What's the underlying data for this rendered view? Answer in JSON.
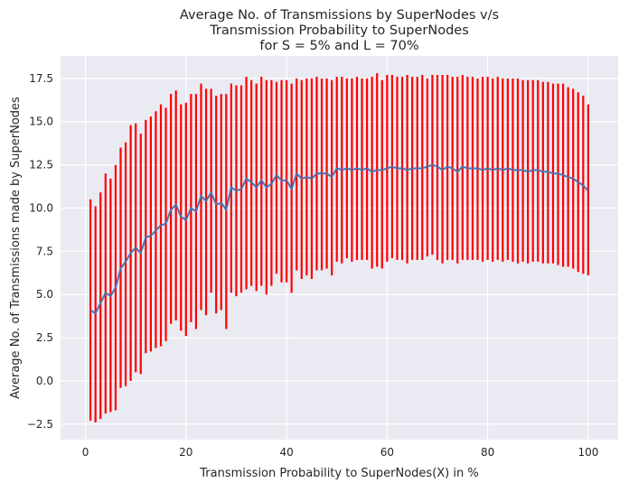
{
  "chart_data": {
    "type": "line",
    "title_lines": [
      "Average No. of Transmissions by SuperNodes v/s",
      "Transmission Probability to SuperNodes",
      "for S = 5% and L = 70%"
    ],
    "xlabel": "Transmission Probability to SuperNodes(X) in %",
    "ylabel": "Average No. of Transmissions made by SuperNodes",
    "xlim": [
      -4.95,
      105.95
    ],
    "ylim": [
      -3.4,
      18.8
    ],
    "x_ticks": [
      0,
      20,
      40,
      60,
      80,
      100
    ],
    "x_tick_labels": [
      "0",
      "20",
      "40",
      "60",
      "80",
      "100"
    ],
    "y_ticks": [
      -2.5,
      0.0,
      2.5,
      5.0,
      7.5,
      10.0,
      12.5,
      15.0,
      17.5
    ],
    "y_tick_labels": [
      "−2.5",
      "0.0",
      "2.5",
      "5.0",
      "7.5",
      "10.0",
      "12.5",
      "15.0",
      "17.5"
    ],
    "grid": true,
    "background_color": "#eaeaf2",
    "grid_color": "#ffffff",
    "line_color": "#4c72b0",
    "errorbar_color": "#ff0000",
    "x": [
      1,
      2,
      3,
      4,
      5,
      6,
      7,
      8,
      9,
      10,
      11,
      12,
      13,
      14,
      15,
      16,
      17,
      18,
      19,
      20,
      21,
      22,
      23,
      24,
      25,
      26,
      27,
      28,
      29,
      30,
      31,
      32,
      33,
      34,
      35,
      36,
      37,
      38,
      39,
      40,
      41,
      42,
      43,
      44,
      45,
      46,
      47,
      48,
      49,
      50,
      51,
      52,
      53,
      54,
      55,
      56,
      57,
      58,
      59,
      60,
      61,
      62,
      63,
      64,
      65,
      66,
      67,
      68,
      69,
      70,
      71,
      72,
      73,
      74,
      75,
      76,
      77,
      78,
      79,
      80,
      81,
      82,
      83,
      84,
      85,
      86,
      87,
      88,
      89,
      90,
      91,
      92,
      93,
      94,
      95,
      96,
      97,
      98,
      99,
      100
    ],
    "y": [
      4.1,
      3.9,
      4.5,
      5.1,
      4.9,
      5.4,
      6.5,
      6.9,
      7.4,
      7.7,
      7.4,
      8.3,
      8.4,
      8.7,
      9.0,
      9.1,
      9.9,
      10.2,
      9.5,
      9.3,
      10.0,
      9.8,
      10.7,
      10.4,
      10.9,
      10.2,
      10.3,
      9.9,
      11.2,
      11.0,
      11.1,
      11.7,
      11.5,
      11.2,
      11.6,
      11.2,
      11.4,
      11.9,
      11.6,
      11.6,
      11.1,
      12.0,
      11.7,
      11.8,
      11.7,
      12.0,
      12.0,
      12.0,
      11.8,
      12.3,
      12.2,
      12.3,
      12.2,
      12.3,
      12.2,
      12.3,
      12.1,
      12.2,
      12.2,
      12.3,
      12.4,
      12.3,
      12.3,
      12.2,
      12.3,
      12.3,
      12.3,
      12.4,
      12.5,
      12.4,
      12.2,
      12.4,
      12.3,
      12.1,
      12.4,
      12.3,
      12.3,
      12.3,
      12.2,
      12.3,
      12.2,
      12.3,
      12.2,
      12.3,
      12.2,
      12.2,
      12.2,
      12.1,
      12.2,
      12.2,
      12.1,
      12.1,
      12.0,
      12.0,
      11.9,
      11.8,
      11.7,
      11.5,
      11.3,
      11.0
    ],
    "upper": [
      10.5,
      10.1,
      10.9,
      12.0,
      11.7,
      12.5,
      13.5,
      13.8,
      14.8,
      14.9,
      14.3,
      15.1,
      15.3,
      15.6,
      16.0,
      15.8,
      16.6,
      16.8,
      16.0,
      16.1,
      16.6,
      16.6,
      17.2,
      16.9,
      16.9,
      16.5,
      16.6,
      16.6,
      17.2,
      17.1,
      17.1,
      17.6,
      17.4,
      17.2,
      17.6,
      17.4,
      17.4,
      17.3,
      17.4,
      17.4,
      17.2,
      17.5,
      17.4,
      17.5,
      17.5,
      17.6,
      17.5,
      17.5,
      17.4,
      17.6,
      17.6,
      17.5,
      17.5,
      17.6,
      17.5,
      17.5,
      17.6,
      17.8,
      17.4,
      17.7,
      17.7,
      17.6,
      17.6,
      17.7,
      17.6,
      17.6,
      17.7,
      17.5,
      17.7,
      17.7,
      17.7,
      17.7,
      17.6,
      17.6,
      17.7,
      17.6,
      17.6,
      17.5,
      17.6,
      17.6,
      17.5,
      17.6,
      17.5,
      17.5,
      17.5,
      17.5,
      17.4,
      17.4,
      17.4,
      17.4,
      17.3,
      17.3,
      17.2,
      17.2,
      17.2,
      17.0,
      16.9,
      16.7,
      16.5,
      16.0
    ],
    "lower": [
      -2.3,
      -2.4,
      -2.2,
      -1.9,
      -1.8,
      -1.7,
      -0.4,
      -0.3,
      0.0,
      0.5,
      0.4,
      1.6,
      1.7,
      1.9,
      2.0,
      2.3,
      3.3,
      3.5,
      2.9,
      2.6,
      3.4,
      3.0,
      4.1,
      3.8,
      5.1,
      3.9,
      4.1,
      3.0,
      5.1,
      4.9,
      5.1,
      5.3,
      5.5,
      5.2,
      5.5,
      5.0,
      5.5,
      6.2,
      5.7,
      5.7,
      5.1,
      6.4,
      5.9,
      6.1,
      5.9,
      6.4,
      6.4,
      6.5,
      6.1,
      6.9,
      6.8,
      7.1,
      6.9,
      7.0,
      7.0,
      7.0,
      6.5,
      6.6,
      6.5,
      6.9,
      7.1,
      7.0,
      7.0,
      6.8,
      7.0,
      7.0,
      7.0,
      7.2,
      7.3,
      7.0,
      6.8,
      7.0,
      7.0,
      6.8,
      7.0,
      7.0,
      7.0,
      7.0,
      6.9,
      7.0,
      6.9,
      7.0,
      6.9,
      7.0,
      6.9,
      6.8,
      6.9,
      6.8,
      6.9,
      6.9,
      6.8,
      6.8,
      6.8,
      6.7,
      6.6,
      6.6,
      6.5,
      6.3,
      6.2,
      6.1
    ]
  }
}
